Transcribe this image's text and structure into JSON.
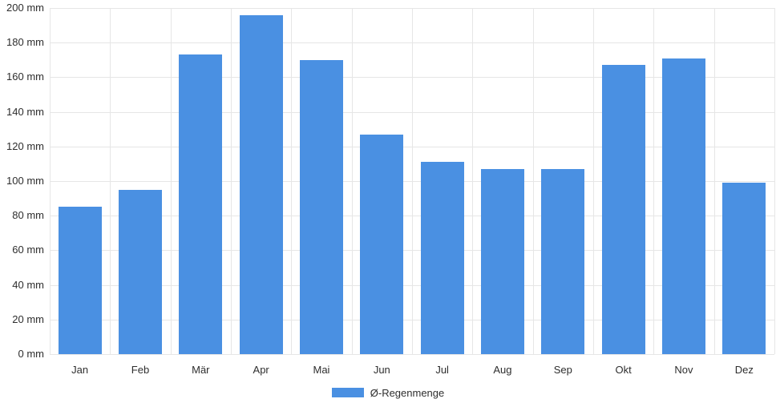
{
  "chart_data": {
    "type": "bar",
    "title": "",
    "xlabel": "",
    "ylabel": "",
    "unit": "mm",
    "categories": [
      "Jan",
      "Feb",
      "Mär",
      "Apr",
      "Mai",
      "Jun",
      "Jul",
      "Aug",
      "Sep",
      "Okt",
      "Nov",
      "Dez"
    ],
    "series": [
      {
        "name": "Ø-Regenmenge",
        "values": [
          85,
          95,
          173,
          196,
          170,
          127,
          111,
          107,
          107,
          167,
          171,
          99
        ]
      }
    ],
    "ylim": [
      0,
      200
    ],
    "ytick_step": 20,
    "ytick_labels": [
      "0 mm",
      "20 mm",
      "40 mm",
      "60 mm",
      "80 mm",
      "100 mm",
      "120 mm",
      "140 mm",
      "160 mm",
      "180 mm",
      "200 mm"
    ],
    "grid": true,
    "legend_position": "bottom",
    "colors": {
      "bar": "#4a90e2",
      "grid": "#e6e6e6",
      "text": "#2e2e2e",
      "background": "#ffffff"
    }
  }
}
